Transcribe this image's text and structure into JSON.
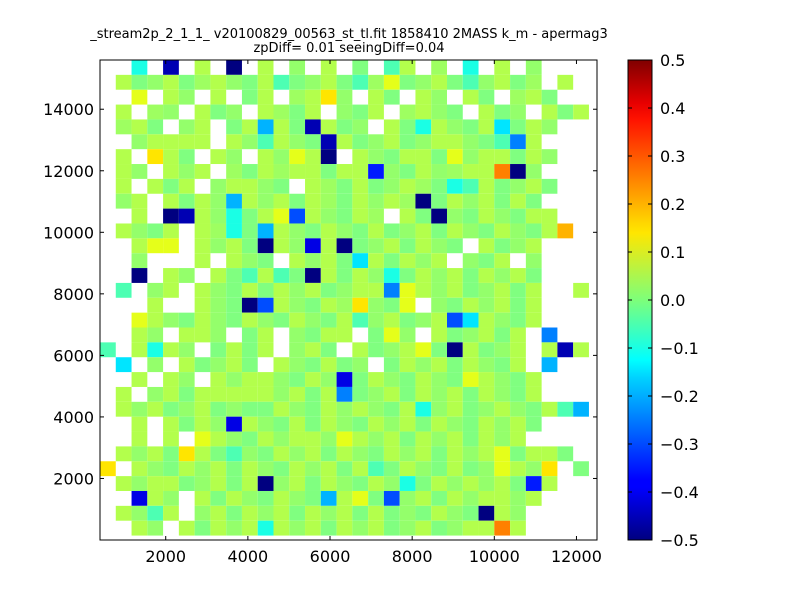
{
  "chart_data": {
    "type": "heatmap",
    "title": "_stream2p_2_1_1_ v20100829_00563_st_tl.fit 1858410 2MASS k_m - apermag3",
    "subtitle": "zpDiff= 0.01 seeingDiff=0.04",
    "xlabel": "",
    "ylabel": "",
    "xlim": [
      400,
      12500
    ],
    "ylim": [
      0,
      15600
    ],
    "xticks": [
      2000,
      4000,
      6000,
      8000,
      10000,
      12000
    ],
    "yticks": [
      2000,
      4000,
      6000,
      8000,
      10000,
      12000,
      14000
    ],
    "grid": false,
    "colormap": "jet",
    "colorbar": {
      "range": [
        -0.5,
        0.5
      ],
      "ticks": [
        "0.5",
        "0.4",
        "0.3",
        "0.2",
        "0.1",
        "0.0",
        "−0.1",
        "−0.2",
        "−0.3",
        "−0.4",
        "−0.5"
      ]
    },
    "cells": {
      "x_start": 400,
      "x_step": 384,
      "y_start": 15600,
      "y_step": 483,
      "columns": 31,
      "rows": 32,
      "values": [
        [
          null,
          null,
          -0.1,
          null,
          -0.45,
          null,
          0.05,
          null,
          -0.5,
          null,
          0.05,
          null,
          0.02,
          null,
          0.05,
          null,
          0.0,
          null,
          -0.05,
          0.05,
          null,
          0.03,
          null,
          -0.1,
          null,
          0.05,
          null,
          0.02,
          null,
          null,
          null
        ],
        [
          null,
          0.05,
          0.0,
          0.02,
          0.05,
          0.0,
          0.03,
          0.05,
          0.02,
          0.0,
          0.05,
          -0.05,
          0.0,
          0.02,
          0.05,
          0.0,
          -0.05,
          0.03,
          0.1,
          0.0,
          0.02,
          0.05,
          0.0,
          -0.05,
          0.02,
          0.05,
          0.0,
          0.03,
          null,
          0.05,
          null
        ],
        [
          null,
          null,
          0.1,
          null,
          0.05,
          0.02,
          null,
          0.05,
          null,
          0.0,
          0.05,
          null,
          0.03,
          0.05,
          0.15,
          0.02,
          null,
          0.05,
          0.0,
          null,
          0.05,
          0.02,
          null,
          0.05,
          0.0,
          null,
          0.03,
          0.05,
          0.0,
          null,
          null
        ],
        [
          null,
          0.05,
          null,
          0.03,
          0.02,
          null,
          0.05,
          0.0,
          0.02,
          null,
          0.05,
          0.03,
          0.0,
          0.05,
          null,
          0.02,
          0.0,
          0.05,
          null,
          0.03,
          0.05,
          0.02,
          0.0,
          null,
          0.05,
          0.0,
          0.02,
          null,
          0.05,
          0.0,
          0.05
        ],
        [
          null,
          0.03,
          0.05,
          0.0,
          null,
          0.02,
          0.05,
          null,
          0.0,
          0.05,
          -0.2,
          0.05,
          0.0,
          -0.45,
          0.05,
          0.0,
          0.02,
          null,
          0.05,
          0.0,
          -0.1,
          0.05,
          0.02,
          0.0,
          0.05,
          -0.15,
          0.0,
          0.05,
          0.02,
          null,
          null
        ],
        [
          null,
          null,
          0.02,
          0.05,
          0.05,
          0.05,
          0.05,
          null,
          0.05,
          0.02,
          -0.05,
          0.05,
          0.02,
          0.0,
          -0.45,
          0.05,
          0.0,
          0.02,
          0.05,
          0.0,
          0.02,
          0.05,
          0.05,
          0.02,
          0.0,
          -0.05,
          -0.25,
          0.05,
          null,
          null,
          null
        ],
        [
          null,
          0.05,
          null,
          0.15,
          0.05,
          0.0,
          null,
          0.05,
          0.02,
          null,
          0.05,
          0.02,
          0.1,
          0.05,
          -0.5,
          null,
          0.05,
          0.02,
          0.0,
          0.05,
          0.05,
          0.0,
          0.1,
          0.02,
          0.05,
          0.05,
          0.0,
          0.05,
          0.02,
          null,
          null
        ],
        [
          null,
          0.05,
          0.02,
          null,
          0.05,
          0.02,
          0.05,
          null,
          0.03,
          0.0,
          0.05,
          0.03,
          0.05,
          0.05,
          0.0,
          0.05,
          0.05,
          -0.35,
          0.02,
          0.0,
          0.05,
          0.02,
          0.03,
          0.05,
          0.05,
          0.25,
          -0.5,
          0.02,
          null,
          null,
          null
        ],
        [
          null,
          0.05,
          null,
          0.05,
          0.0,
          0.05,
          null,
          0.02,
          0.05,
          0.05,
          0.02,
          0.0,
          null,
          0.05,
          0.03,
          0.0,
          0.05,
          0.0,
          0.02,
          0.05,
          0.03,
          0.0,
          -0.1,
          -0.05,
          0.05,
          0.0,
          0.02,
          0.05,
          0.0,
          null,
          null
        ],
        [
          null,
          0.02,
          0.05,
          null,
          0.05,
          0.0,
          0.05,
          0.02,
          -0.2,
          0.05,
          0.02,
          0.05,
          0.0,
          0.05,
          0.03,
          0.0,
          0.05,
          0.02,
          0.05,
          0.03,
          -0.5,
          0.0,
          0.05,
          0.02,
          0.05,
          0.0,
          0.05,
          0.0,
          null,
          null,
          null
        ],
        [
          null,
          null,
          0.05,
          null,
          -0.5,
          -0.45,
          0.05,
          0.02,
          -0.1,
          0.0,
          0.05,
          0.1,
          -0.3,
          0.05,
          0.02,
          0.0,
          0.05,
          0.03,
          null,
          0.05,
          0.0,
          -0.5,
          0.02,
          0.0,
          0.05,
          0.02,
          0.0,
          0.05,
          0.05,
          null,
          null
        ],
        [
          null,
          0.05,
          0.02,
          0.0,
          0.05,
          null,
          0.05,
          0.03,
          -0.1,
          0.0,
          -0.2,
          0.05,
          0.02,
          0.0,
          0.05,
          0.02,
          0.0,
          0.05,
          0.0,
          0.02,
          0.05,
          0.0,
          0.05,
          0.02,
          0.0,
          0.05,
          0.02,
          0.0,
          0.05,
          0.2,
          null
        ],
        [
          null,
          null,
          0.05,
          0.1,
          0.1,
          null,
          0.05,
          0.02,
          0.05,
          0.0,
          -0.5,
          0.05,
          0.02,
          -0.4,
          0.05,
          -0.5,
          0.0,
          0.02,
          0.05,
          0.0,
          0.05,
          0.02,
          0.0,
          null,
          0.05,
          0.0,
          0.02,
          0.05,
          null,
          null,
          null
        ],
        [
          null,
          null,
          0.02,
          null,
          null,
          null,
          0.05,
          null,
          0.05,
          0.02,
          0.0,
          null,
          0.05,
          0.02,
          0.05,
          0.0,
          -0.15,
          0.05,
          0.0,
          0.05,
          0.02,
          0.05,
          null,
          0.02,
          0.0,
          0.05,
          null,
          0.02,
          null,
          null,
          null
        ],
        [
          null,
          null,
          -0.5,
          null,
          0.05,
          0.02,
          null,
          0.05,
          0.0,
          -0.05,
          0.05,
          -0.05,
          0.0,
          -0.5,
          0.05,
          0.0,
          0.05,
          0.02,
          -0.1,
          0.0,
          0.05,
          0.02,
          0.05,
          0.0,
          0.05,
          0.02,
          0.05,
          0.0,
          null,
          null,
          null
        ],
        [
          null,
          -0.05,
          null,
          0.02,
          0.05,
          null,
          0.05,
          0.02,
          0.0,
          0.05,
          0.0,
          0.05,
          0.02,
          0.05,
          0.0,
          0.02,
          0.05,
          0.05,
          -0.25,
          0.1,
          0.05,
          0.02,
          0.05,
          0.0,
          0.02,
          0.05,
          0.0,
          0.05,
          null,
          null,
          0.05
        ],
        [
          null,
          null,
          null,
          0.05,
          null,
          null,
          0.05,
          0.02,
          0.0,
          -0.5,
          -0.3,
          0.05,
          0.02,
          0.0,
          0.05,
          0.03,
          0.15,
          0.02,
          0.0,
          0.1,
          null,
          0.02,
          0.0,
          0.05,
          0.02,
          0.05,
          0.0,
          0.05,
          null,
          null,
          null
        ],
        [
          null,
          null,
          0.1,
          0.05,
          0.02,
          0.0,
          0.05,
          0.02,
          0.0,
          0.05,
          0.02,
          0.0,
          0.05,
          0.02,
          0.0,
          0.05,
          -0.05,
          0.02,
          0.05,
          0.0,
          0.02,
          0.05,
          -0.3,
          -0.15,
          0.05,
          0.02,
          0.0,
          0.05,
          null,
          null,
          null
        ],
        [
          null,
          null,
          0.05,
          0.02,
          null,
          0.05,
          0.05,
          0.02,
          null,
          0.0,
          0.05,
          null,
          0.02,
          0.0,
          0.05,
          0.05,
          null,
          0.0,
          0.1,
          0.02,
          null,
          0.05,
          0.0,
          0.02,
          0.05,
          0.0,
          0.05,
          null,
          -0.25,
          null,
          null
        ],
        [
          -0.05,
          null,
          0.05,
          -0.1,
          0.05,
          0.02,
          null,
          0.0,
          0.05,
          0.0,
          0.05,
          null,
          0.02,
          0.05,
          0.0,
          null,
          0.05,
          0.0,
          0.02,
          0.05,
          0.1,
          0.0,
          -0.5,
          0.05,
          0.0,
          0.02,
          0.05,
          null,
          0.05,
          -0.45,
          0.05
        ],
        [
          null,
          -0.15,
          null,
          0.02,
          null,
          0.05,
          0.0,
          0.02,
          0.05,
          0.0,
          null,
          0.05,
          0.02,
          0.0,
          0.05,
          0.0,
          0.02,
          null,
          0.0,
          0.05,
          0.02,
          0.05,
          0.0,
          0.05,
          0.02,
          0.0,
          0.05,
          null,
          -0.2,
          null,
          null
        ],
        [
          null,
          null,
          0.05,
          null,
          0.05,
          0.02,
          null,
          0.05,
          0.02,
          0.05,
          0.05,
          0.02,
          0.0,
          0.05,
          0.02,
          -0.4,
          0.0,
          0.05,
          0.02,
          0.0,
          0.05,
          0.02,
          0.0,
          0.1,
          0.05,
          0.02,
          0.0,
          0.05,
          null,
          null,
          null
        ],
        [
          null,
          0.05,
          null,
          0.02,
          0.05,
          0.0,
          0.05,
          0.05,
          0.05,
          0.05,
          0.05,
          0.02,
          0.05,
          0.0,
          0.05,
          -0.25,
          0.0,
          0.02,
          0.05,
          0.0,
          0.05,
          0.02,
          0.05,
          0.0,
          0.05,
          0.02,
          0.0,
          0.05,
          null,
          null,
          null
        ],
        [
          null,
          0.05,
          0.02,
          0.05,
          0.0,
          0.02,
          0.05,
          0.0,
          0.02,
          0.0,
          0.0,
          0.05,
          0.02,
          0.0,
          0.05,
          0.02,
          0.05,
          0.02,
          0.0,
          0.05,
          -0.1,
          0.02,
          0.05,
          0.0,
          0.02,
          0.05,
          0.02,
          0.0,
          0.05,
          -0.05,
          -0.2
        ],
        [
          null,
          null,
          0.05,
          null,
          0.05,
          0.0,
          0.05,
          0.02,
          -0.4,
          0.05,
          0.02,
          0.0,
          0.05,
          0.0,
          0.05,
          0.02,
          0.0,
          0.05,
          0.02,
          0.05,
          0.0,
          0.05,
          0.02,
          0.0,
          0.05,
          0.02,
          0.05,
          0.0,
          null,
          null,
          null
        ],
        [
          null,
          null,
          0.05,
          null,
          0.05,
          null,
          0.1,
          0.05,
          0.02,
          0.0,
          0.05,
          0.02,
          0.05,
          0.05,
          0.02,
          0.1,
          0.05,
          0.02,
          0.05,
          0.0,
          0.05,
          0.02,
          0.05,
          0.0,
          0.05,
          0.02,
          0.05,
          null,
          null,
          null,
          null
        ],
        [
          null,
          0.05,
          0.02,
          0.05,
          0.0,
          0.15,
          0.05,
          0.0,
          -0.05,
          0.02,
          0.0,
          0.05,
          0.02,
          0.05,
          0.0,
          0.05,
          0.02,
          0.0,
          0.05,
          0.02,
          0.05,
          0.0,
          0.05,
          0.02,
          0.05,
          0.1,
          0.0,
          0.05,
          0.05,
          0.0,
          null
        ],
        [
          0.15,
          null,
          0.05,
          0.02,
          0.0,
          0.05,
          0.02,
          0.05,
          0.0,
          0.05,
          0.02,
          0.0,
          0.05,
          0.02,
          0.05,
          0.0,
          0.05,
          -0.05,
          0.0,
          0.05,
          0.02,
          0.0,
          0.05,
          0.0,
          0.02,
          0.1,
          0.05,
          0.02,
          0.15,
          null,
          0.0
        ],
        [
          null,
          0.05,
          0.02,
          0.05,
          0.05,
          0.0,
          0.02,
          0.05,
          0.0,
          0.05,
          -0.5,
          0.02,
          0.05,
          0.0,
          0.05,
          0.02,
          0.0,
          0.05,
          0.02,
          -0.1,
          0.0,
          0.05,
          0.02,
          0.05,
          0.02,
          0.05,
          0.0,
          -0.35,
          0.05,
          null,
          null
        ],
        [
          null,
          null,
          -0.4,
          0.05,
          0.02,
          null,
          0.05,
          0.0,
          0.05,
          0.02,
          0.0,
          0.05,
          0.02,
          0.0,
          -0.2,
          0.05,
          0.1,
          0.0,
          -0.3,
          0.02,
          0.05,
          0.0,
          0.05,
          0.02,
          0.05,
          0.05,
          0.02,
          0.05,
          null,
          null,
          null
        ],
        [
          null,
          0.05,
          0.02,
          -0.05,
          0.05,
          null,
          0.02,
          0.05,
          0.0,
          0.05,
          0.02,
          0.05,
          0.0,
          0.05,
          0.02,
          0.05,
          0.0,
          0.05,
          0.0,
          0.02,
          0.0,
          0.05,
          0.02,
          0.0,
          -0.5,
          0.05,
          0.02,
          null,
          null,
          null,
          null
        ],
        [
          null,
          null,
          0.05,
          0.02,
          null,
          0.05,
          0.0,
          0.05,
          0.02,
          0.05,
          -0.1,
          0.05,
          0.02,
          0.05,
          0.0,
          0.05,
          0.02,
          0.05,
          0.0,
          0.02,
          0.05,
          0.0,
          0.02,
          0.05,
          0.05,
          0.25,
          0.05,
          null,
          null,
          null,
          null
        ]
      ]
    }
  }
}
